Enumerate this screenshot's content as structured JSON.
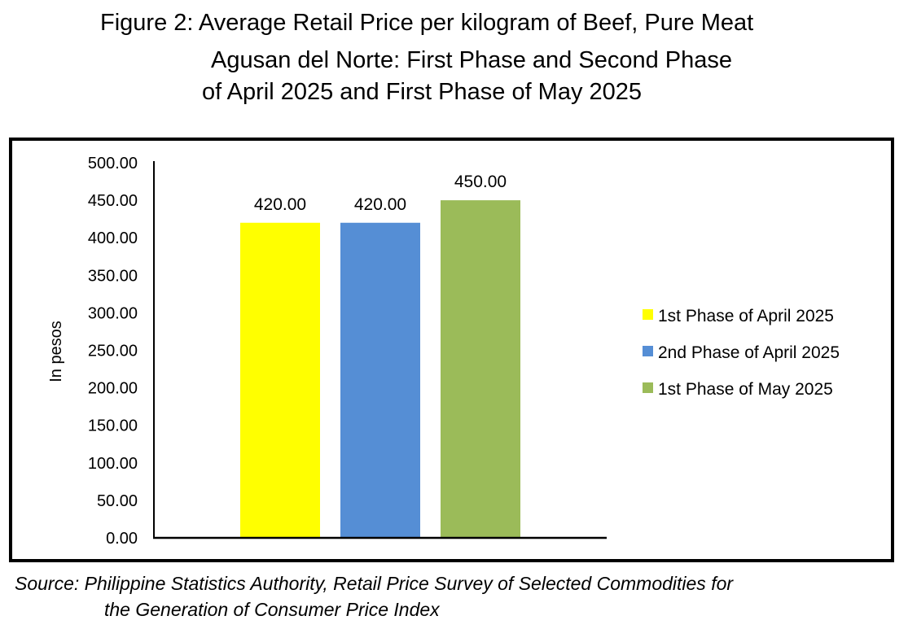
{
  "title_lines": [
    "Figure 2: Average Retail Price per kilogram of Beef, Pure Meat",
    "Agusan del Norte: First Phase and Second Phase",
    "of April 2025 and First Phase of May 2025"
  ],
  "source_lines": [
    "Source: Philippine Statistics Authority, Retail Price Survey of Selected Commodities for",
    "the Generation of Consumer Price Index"
  ],
  "chart_data": {
    "type": "bar",
    "title": "Figure 2: Average Retail Price per kilogram of Beef, Pure Meat Agusan del Norte: First Phase and Second Phase of April 2025 and First Phase of May 2025",
    "xlabel": "",
    "ylabel": "In pesos",
    "ylim": [
      0,
      500
    ],
    "yticks": [
      0,
      50,
      100,
      150,
      200,
      250,
      300,
      350,
      400,
      450,
      500
    ],
    "ytick_labels": [
      "0.00",
      "50.00",
      "100.00",
      "150.00",
      "200.00",
      "250.00",
      "300.00",
      "350.00",
      "400.00",
      "450.00",
      "500.00"
    ],
    "grid": false,
    "legend_position": "right",
    "series": [
      {
        "name": "1st Phase of April 2025",
        "values": [
          420.0
        ],
        "label": "420.00",
        "color": "#FFFF00"
      },
      {
        "name": "2nd Phase of April 2025",
        "values": [
          420.0
        ],
        "label": "420.00",
        "color": "#558ED5"
      },
      {
        "name": "1st Phase of May 2025",
        "values": [
          450.0
        ],
        "label": "450.00",
        "color": "#9BBB59"
      }
    ]
  }
}
